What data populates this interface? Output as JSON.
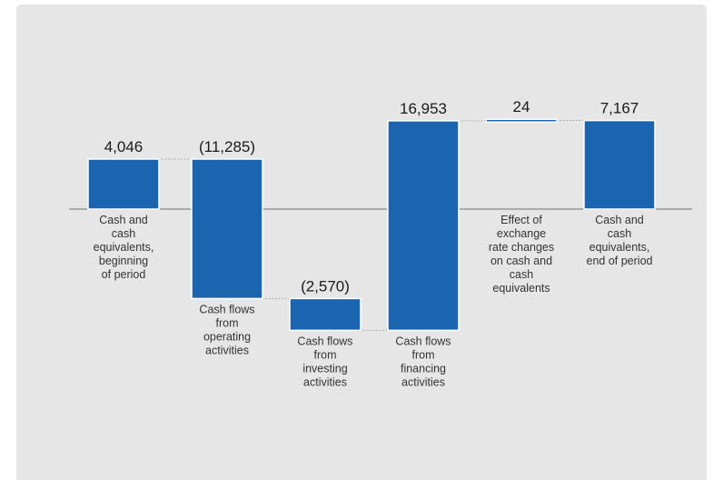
{
  "chart_data": {
    "type": "waterfall",
    "title": "",
    "xlabel": "",
    "ylabel": "",
    "colors": {
      "bar": "#1a64b0",
      "bar_stroke": "#ffffff",
      "background": "#e6e6e6",
      "axis": "#8a8a8a",
      "connector": "#a0a0a0"
    },
    "steps": [
      {
        "label_lines": [
          "Cash and",
          "cash",
          "equivalents,",
          "beginning",
          "of period"
        ],
        "display": "4,046",
        "value": 4046,
        "kind": "total"
      },
      {
        "label_lines": [
          "Cash flows",
          "from",
          "operating",
          "activities"
        ],
        "display": "(11,285)",
        "value": -11285,
        "kind": "delta"
      },
      {
        "label_lines": [
          "Cash flows",
          "from",
          "investing",
          "activities"
        ],
        "display": "(2,570)",
        "value": -2570,
        "kind": "delta"
      },
      {
        "label_lines": [
          "Cash flows",
          "from",
          "financing",
          "activities"
        ],
        "display": "16,953",
        "value": 16953,
        "kind": "delta"
      },
      {
        "label_lines": [
          "Effect of",
          "exchange",
          "rate changes",
          "on cash and",
          "cash",
          "equivalents"
        ],
        "display": "24",
        "value": 24,
        "kind": "delta"
      },
      {
        "label_lines": [
          "Cash and",
          "cash",
          "equivalents,",
          "end of period"
        ],
        "display": "7,167",
        "value": 7167,
        "kind": "total"
      }
    ]
  }
}
